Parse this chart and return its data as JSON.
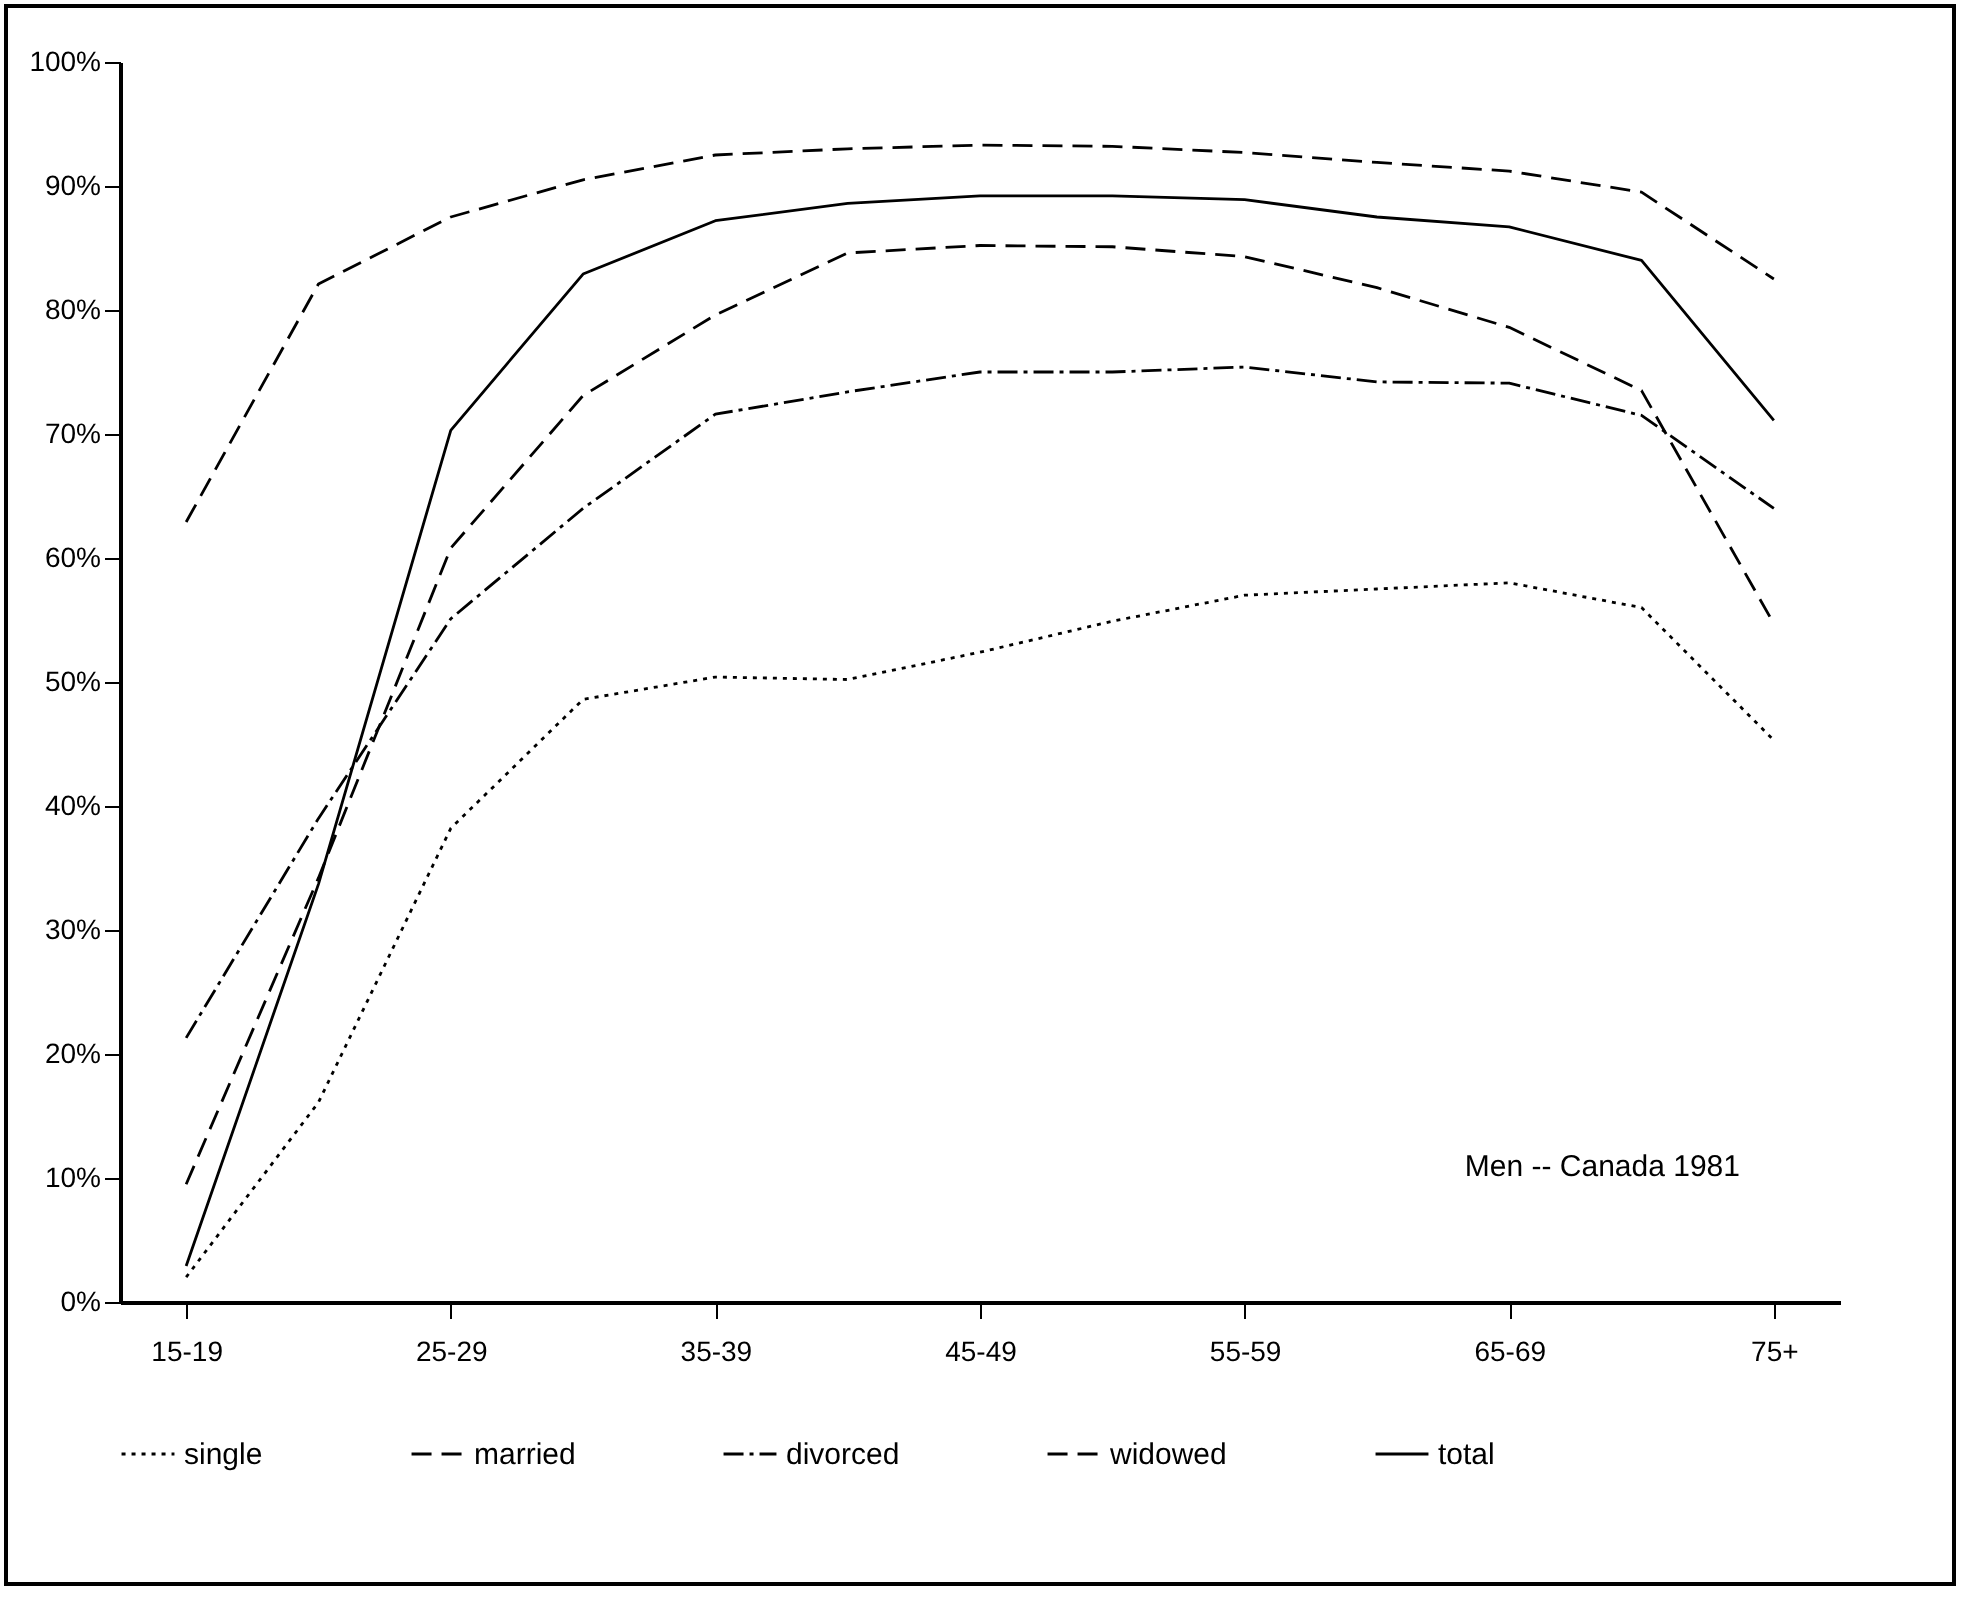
{
  "chart_data": {
    "type": "line",
    "categories": [
      "15-19",
      null,
      "25-29",
      null,
      "35-39",
      null,
      "45-49",
      null,
      "55-59",
      null,
      "65-69",
      null,
      "75+"
    ],
    "series": [
      {
        "name": "single",
        "color": "#000000",
        "line_style": "dotted",
        "values": [
          2,
          16.1,
          38.2,
          48.6,
          50.4,
          50.2,
          52.4,
          54.9,
          57,
          57.5,
          58,
          56,
          45.3
        ]
      },
      {
        "name": "married",
        "color": "#000000",
        "line_style": "dashed",
        "values": [
          62.9,
          82.1,
          87.5,
          90.5,
          92.5,
          93,
          93.3,
          93.2,
          92.7,
          91.9,
          91.2,
          89.5,
          82.5
        ]
      },
      {
        "name": "divorced",
        "color": "#000000",
        "line_style": "dashdot",
        "values": [
          21.3,
          39,
          55.1,
          64,
          71.6,
          73.4,
          75,
          75,
          75.4,
          74.2,
          74.1,
          71.5,
          64
        ]
      },
      {
        "name": "widowed",
        "color": "#000000",
        "line_style": "dashed",
        "values": [
          9.5,
          34.2,
          60.8,
          73.1,
          79.6,
          84.6,
          85.2,
          85.1,
          84.3,
          81.8,
          78.6,
          73.5,
          54.7
        ]
      },
      {
        "name": "total",
        "color": "#000000",
        "line_style": "solid",
        "values": [
          2.9,
          33.7,
          70.3,
          82.9,
          87.2,
          88.6,
          89.2,
          89.2,
          88.9,
          87.5,
          86.7,
          84,
          71.1
        ]
      }
    ],
    "ylim": [
      0,
      100
    ],
    "yticks": [
      {
        "value": 0,
        "label": "0%"
      },
      {
        "value": 10,
        "label": "10%"
      },
      {
        "value": 20,
        "label": "20%"
      },
      {
        "value": 30,
        "label": "30%"
      },
      {
        "value": 40,
        "label": "40%"
      },
      {
        "value": 50,
        "label": "50%"
      },
      {
        "value": 60,
        "label": "60%"
      },
      {
        "value": 70,
        "label": "70%"
      },
      {
        "value": 80,
        "label": "80%"
      },
      {
        "value": 90,
        "label": "90%"
      },
      {
        "value": 100,
        "label": "100%"
      }
    ],
    "annotations": [
      "Men  --  Canada 1981"
    ],
    "grid": false,
    "legend": "bottom",
    "marker": "none"
  }
}
